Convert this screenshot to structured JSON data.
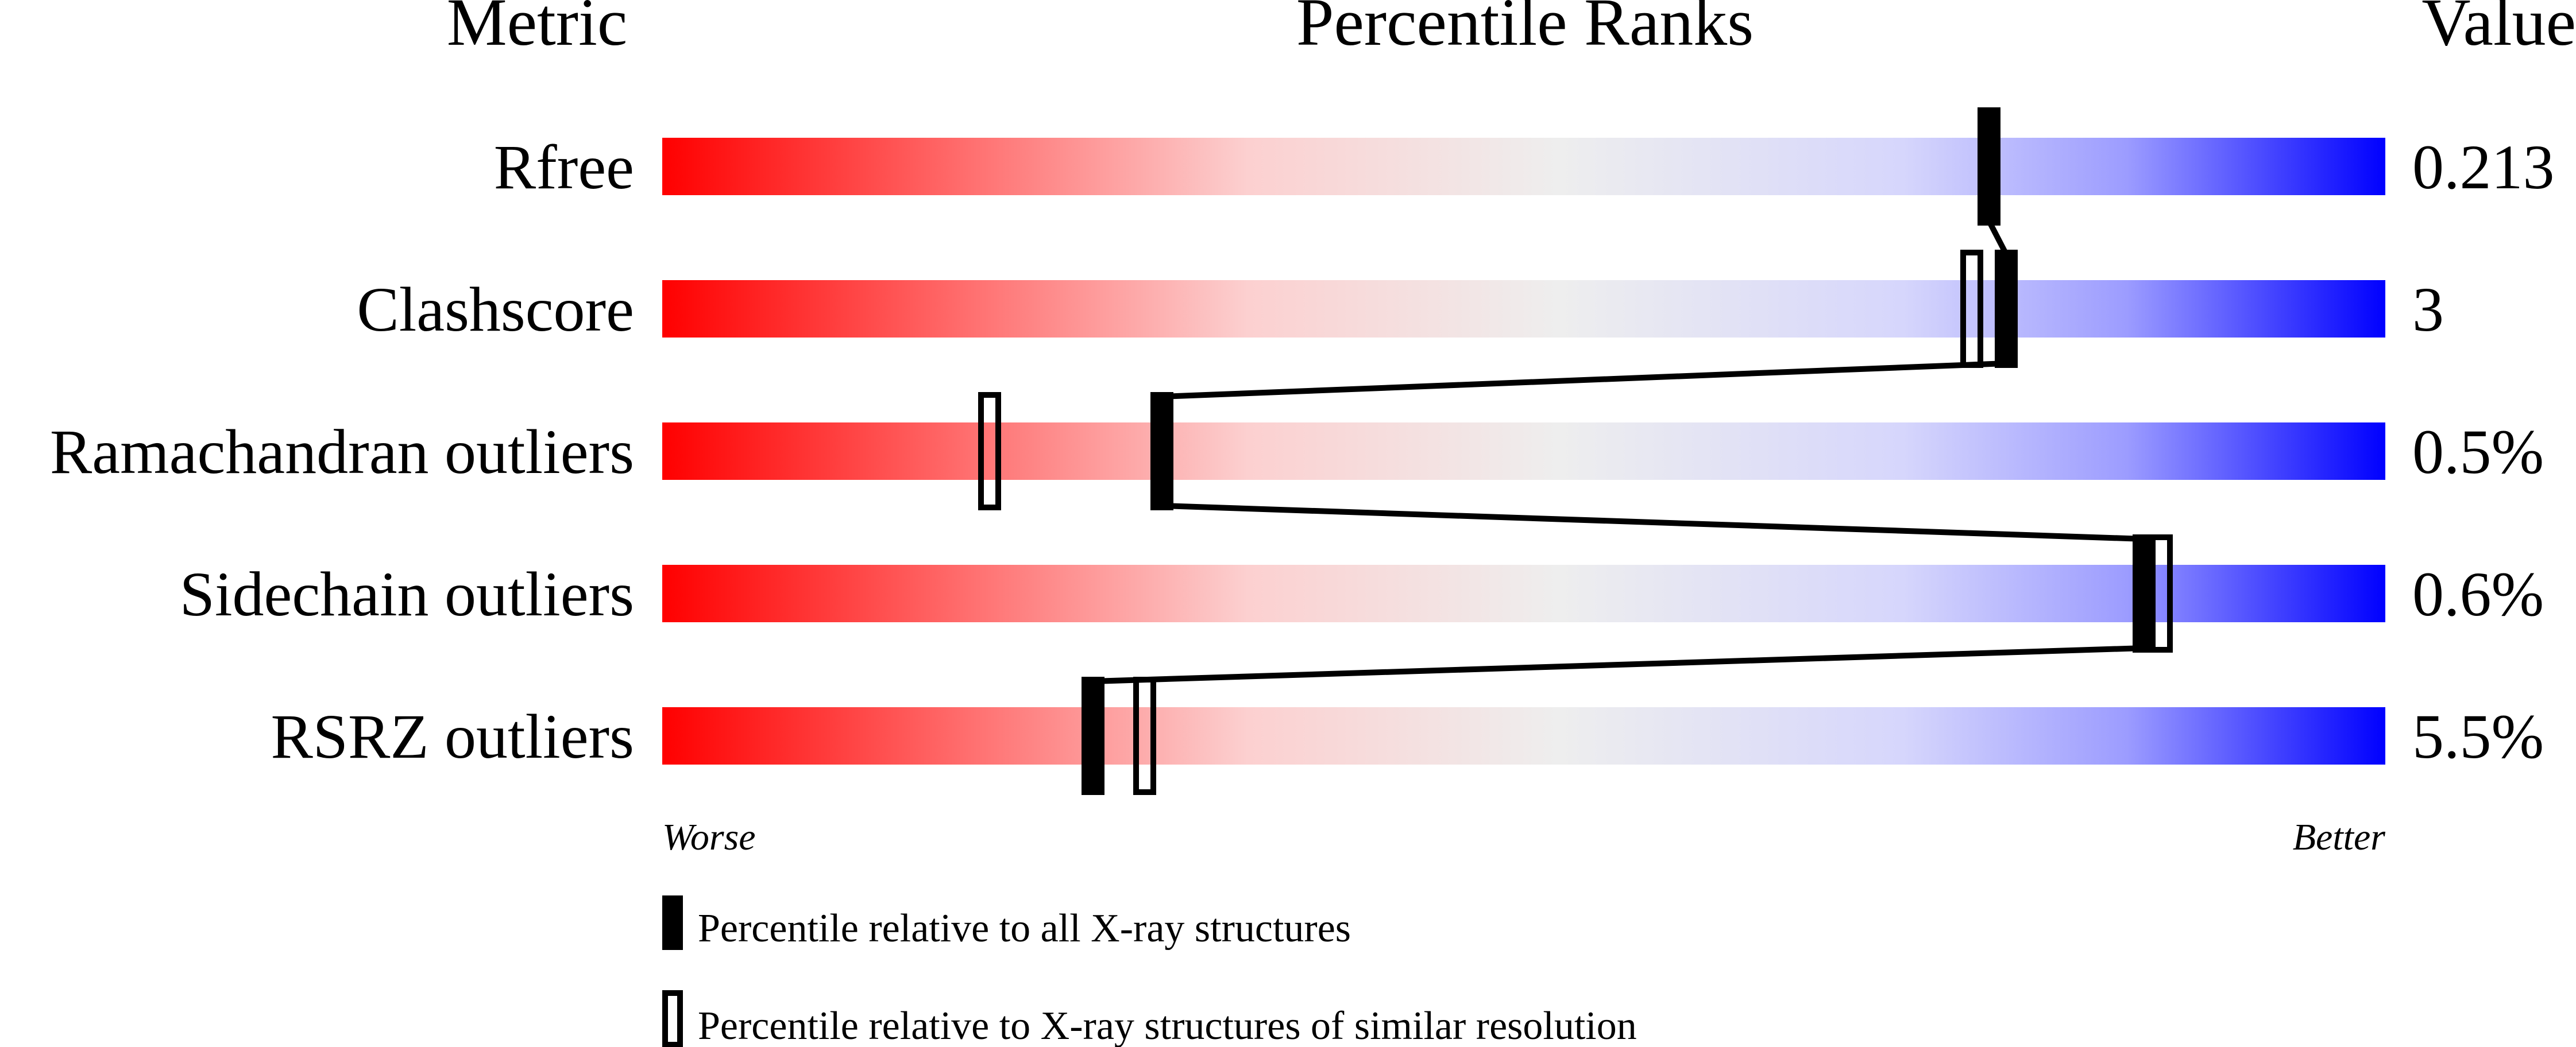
{
  "chart_data": {
    "type": "percentile-slider",
    "headers": {
      "metric": "Metric",
      "ranks": "Percentile Ranks",
      "value": "Value"
    },
    "xlim": [
      0,
      100
    ],
    "axis_labels": {
      "worse": "Worse",
      "better": "Better"
    },
    "metrics": [
      {
        "name": "Rfree",
        "value": "0.213",
        "percentile_all": 77,
        "percentile_similar": null
      },
      {
        "name": "Clashscore",
        "value": "3",
        "percentile_all": 78,
        "percentile_similar": 76
      },
      {
        "name": "Ramachandran outliers",
        "value": "0.5%",
        "percentile_all": 29,
        "percentile_similar": 19
      },
      {
        "name": "Sidechain outliers",
        "value": "0.6%",
        "percentile_all": 86,
        "percentile_similar": 87
      },
      {
        "name": "RSRZ outliers",
        "value": "5.5%",
        "percentile_all": 25,
        "percentile_similar": 28
      }
    ],
    "legend": [
      {
        "marker": "filled",
        "label": "Percentile relative to all X-ray structures"
      },
      {
        "marker": "open",
        "label": "Percentile relative to X-ray structures of similar resolution"
      }
    ],
    "colors": {
      "worse": "#ff0000",
      "middle": "#eeeeee",
      "better": "#0000ff",
      "marker": "#000000"
    }
  }
}
